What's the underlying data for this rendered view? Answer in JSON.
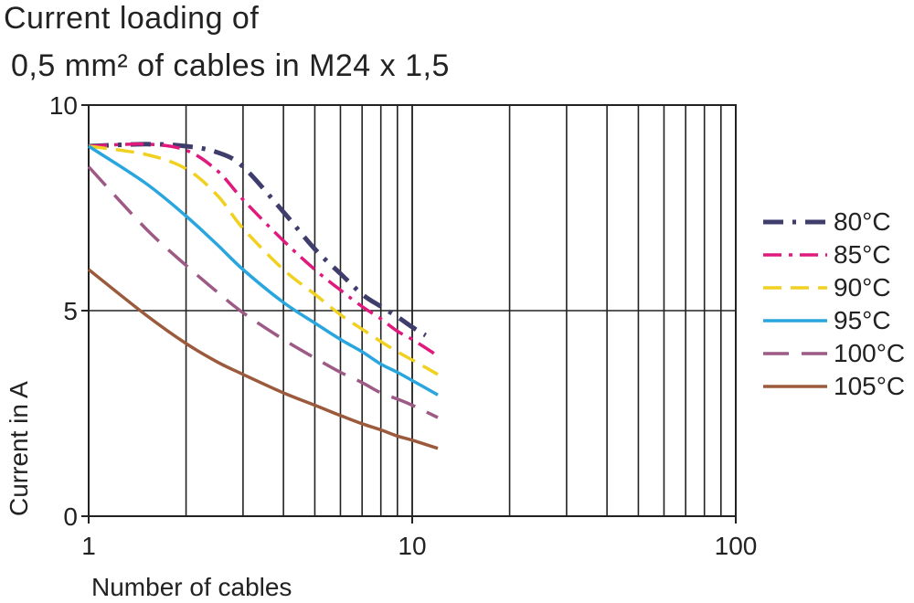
{
  "chart_data": {
    "type": "line",
    "title_line_1": "Current loading of",
    "title_line_2": "0,5 mm² of cables in M24 x 1,5",
    "xlabel": "Number of cables",
    "ylabel": "Current in A",
    "x_scale": "log",
    "xlim": [
      1,
      100
    ],
    "ylim": [
      0,
      10
    ],
    "x_ticks": [
      {
        "value": 1,
        "label": "1"
      },
      {
        "value": 10,
        "label": "10"
      },
      {
        "value": 100,
        "label": "100"
      }
    ],
    "y_ticks": [
      {
        "value": 0,
        "label": "0"
      },
      {
        "value": 5,
        "label": "5"
      },
      {
        "value": 10,
        "label": "10"
      }
    ],
    "grid": "vertical lines at 1–10 and 10–100 (log), horizontal at 5 and 10",
    "legend_position": "right",
    "series": [
      {
        "name": "80°C",
        "color": "#3f3d6b",
        "style": "dash-dot-heavy",
        "x": [
          1,
          1.5,
          2,
          2.5,
          3,
          4,
          5,
          6,
          7,
          8,
          9,
          10,
          11
        ],
        "y": [
          9.0,
          9.05,
          9.0,
          8.85,
          8.5,
          7.4,
          6.5,
          5.9,
          5.4,
          5.1,
          4.85,
          4.6,
          4.4
        ]
      },
      {
        "name": "85°C",
        "color": "#e0197d",
        "style": "dash-dot",
        "x": [
          1,
          1.5,
          2,
          2.5,
          3,
          4,
          5,
          6,
          7,
          8,
          9,
          10,
          12
        ],
        "y": [
          9.0,
          9.05,
          8.9,
          8.4,
          7.7,
          6.7,
          6.0,
          5.5,
          5.1,
          4.8,
          4.5,
          4.3,
          3.9
        ]
      },
      {
        "name": "90°C",
        "color": "#f0d020",
        "style": "dashed",
        "x": [
          1,
          1.5,
          2,
          2.5,
          3,
          4,
          5,
          6,
          7,
          8,
          9,
          10,
          12
        ],
        "y": [
          9.0,
          8.8,
          8.45,
          7.8,
          7.0,
          6.0,
          5.4,
          4.9,
          4.55,
          4.25,
          4.0,
          3.8,
          3.45
        ]
      },
      {
        "name": "95°C",
        "color": "#2aa6df",
        "style": "solid",
        "x": [
          1,
          1.5,
          2,
          2.5,
          3,
          4,
          5,
          6,
          7,
          8,
          9,
          10,
          12
        ],
        "y": [
          9.0,
          8.1,
          7.3,
          6.6,
          6.0,
          5.2,
          4.7,
          4.3,
          4.0,
          3.7,
          3.5,
          3.3,
          2.95
        ]
      },
      {
        "name": "100°C",
        "color": "#9c5a85",
        "style": "long-dash",
        "x": [
          1,
          1.5,
          2,
          2.5,
          3,
          4,
          5,
          6,
          7,
          8,
          9,
          10,
          12
        ],
        "y": [
          8.5,
          7.0,
          6.1,
          5.45,
          4.95,
          4.3,
          3.85,
          3.5,
          3.25,
          3.0,
          2.85,
          2.7,
          2.4
        ]
      },
      {
        "name": "105°C",
        "color": "#9c5a3c",
        "style": "solid",
        "x": [
          1,
          1.5,
          2,
          2.5,
          3,
          4,
          5,
          6,
          7,
          8,
          9,
          10,
          12
        ],
        "y": [
          6.0,
          4.9,
          4.2,
          3.75,
          3.45,
          3.0,
          2.7,
          2.45,
          2.25,
          2.1,
          1.95,
          1.85,
          1.65
        ]
      }
    ]
  }
}
